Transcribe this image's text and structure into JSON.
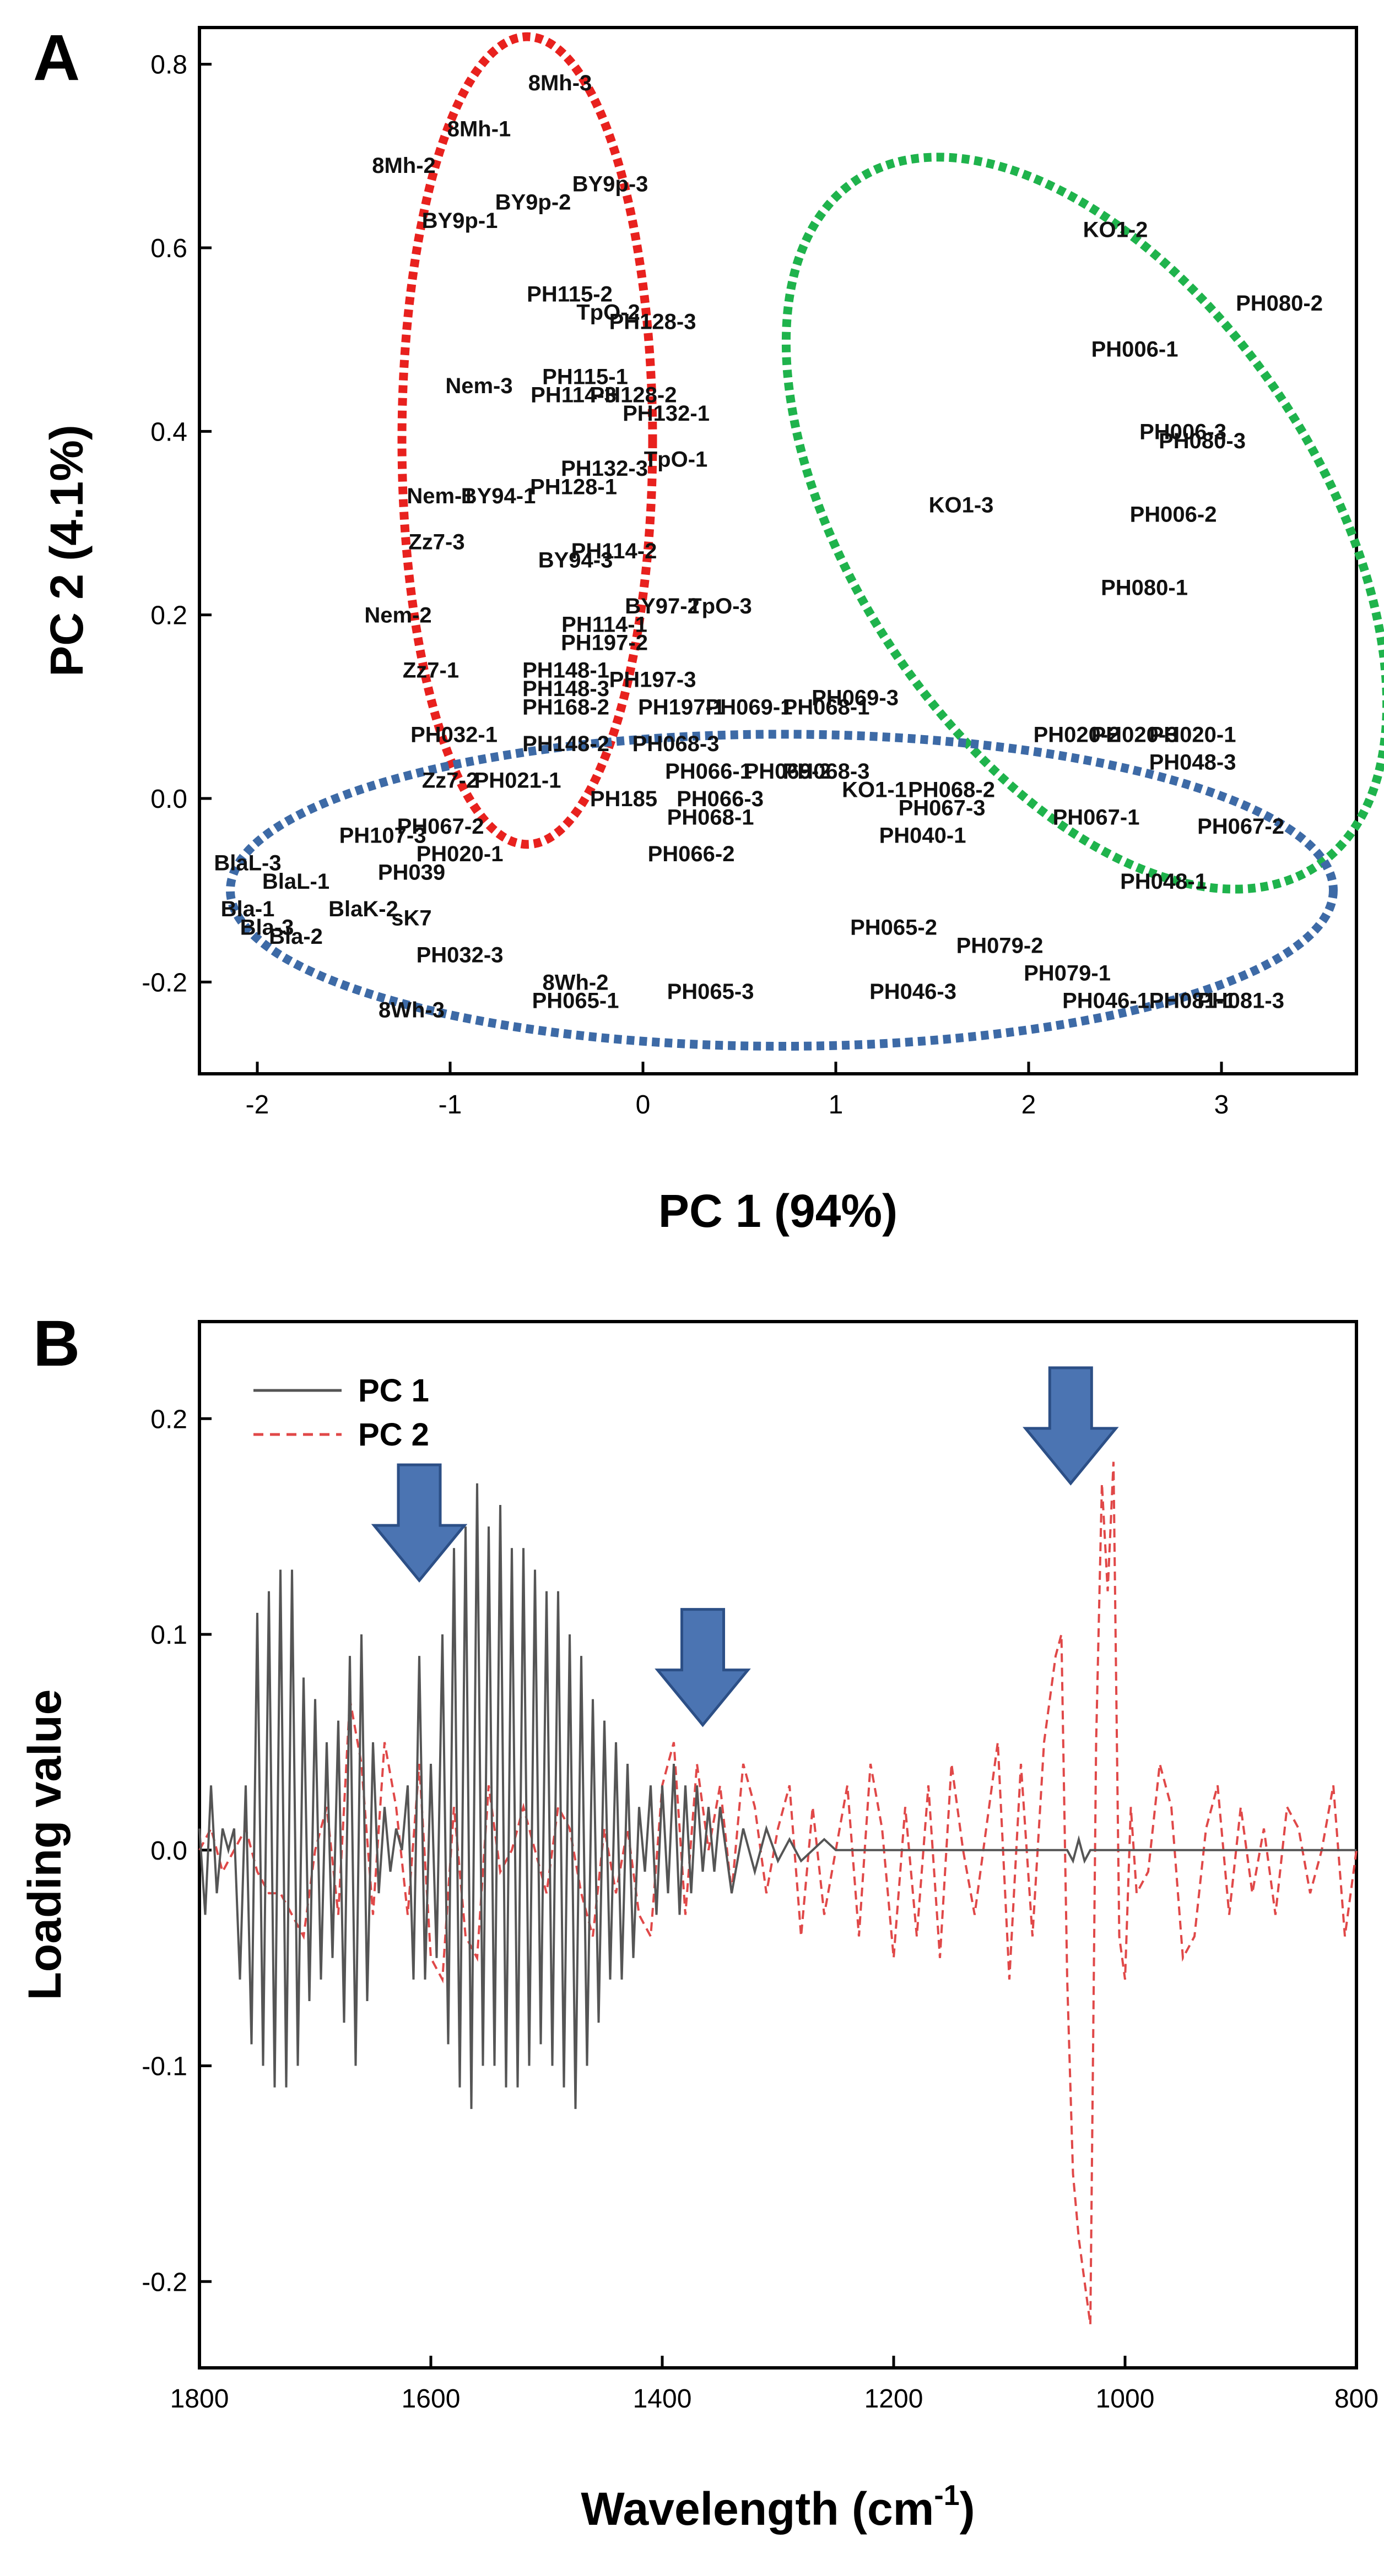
{
  "panels": [
    {
      "letter": "A"
    },
    {
      "letter": "B"
    }
  ],
  "colors": {
    "cluster_red": "#e8211e",
    "cluster_green": "#1fb34c",
    "cluster_blue": "#3d6aa6",
    "pc1_line": "#555555",
    "pc2_line": "#e04848",
    "arrow_fill": "#4b74b2",
    "arrow_stroke": "#2c4f86"
  },
  "chart_data": [
    {
      "type": "scatter",
      "panel": "A",
      "xlabel": "PC 1 (94%)",
      "ylabel": "PC 2 (4.1%)",
      "xlim": [
        -2.3,
        3.7
      ],
      "ylim": [
        -0.3,
        0.84
      ],
      "xticks": [
        -2,
        -1,
        0,
        1,
        2,
        3
      ],
      "yticks": [
        -0.2,
        0.0,
        0.2,
        0.4,
        0.6,
        0.8
      ],
      "xtick_labels": [
        "-2",
        "-1",
        "0",
        "1",
        "2",
        "3"
      ],
      "ytick_labels": [
        "-0.2",
        "0.0",
        "0.2",
        "0.4",
        "0.6",
        "0.8"
      ],
      "clusters": [
        {
          "color": "red",
          "cx": -0.6,
          "cy": 0.39,
          "rx": 0.65,
          "ry": 0.44
        },
        {
          "color": "green",
          "cx": 2.3,
          "cy": 0.3,
          "rx": 1.2,
          "ry": 0.45,
          "rotation": -34
        },
        {
          "color": "blue",
          "cx": 0.72,
          "cy": -0.1,
          "rx": 2.86,
          "ry": 0.17
        }
      ],
      "points": [
        {
          "label": "8Mh-3",
          "x": -0.43,
          "y": 0.78
        },
        {
          "label": "8Mh-1",
          "x": -0.85,
          "y": 0.73
        },
        {
          "label": "8Mh-2",
          "x": -1.24,
          "y": 0.69
        },
        {
          "label": "BY9p-3",
          "x": -0.17,
          "y": 0.67
        },
        {
          "label": "BY9p-2",
          "x": -0.57,
          "y": 0.65
        },
        {
          "label": "BY9p-1",
          "x": -0.95,
          "y": 0.63
        },
        {
          "label": "PH115-2",
          "x": -0.38,
          "y": 0.55
        },
        {
          "label": "TpO-2",
          "x": -0.18,
          "y": 0.53
        },
        {
          "label": "PH128-3",
          "x": 0.05,
          "y": 0.52
        },
        {
          "label": "Nem-3",
          "x": -0.85,
          "y": 0.45
        },
        {
          "label": "PH115-1",
          "x": -0.3,
          "y": 0.46
        },
        {
          "label": "PH114-3",
          "x": -0.36,
          "y": 0.44
        },
        {
          "label": "PH128-2",
          "x": -0.05,
          "y": 0.44
        },
        {
          "label": "PH132-1",
          "x": 0.12,
          "y": 0.42
        },
        {
          "label": "TpO-1",
          "x": 0.17,
          "y": 0.37
        },
        {
          "label": "PH132-3",
          "x": -0.2,
          "y": 0.36
        },
        {
          "label": "PH128-1",
          "x": -0.36,
          "y": 0.34
        },
        {
          "label": "Nem-1",
          "x": -1.05,
          "y": 0.33
        },
        {
          "label": "BY94-1",
          "x": -0.75,
          "y": 0.33
        },
        {
          "label": "Zz7-3",
          "x": -1.07,
          "y": 0.28
        },
        {
          "label": "PH114-2",
          "x": -0.15,
          "y": 0.27
        },
        {
          "label": "BY94-3",
          "x": -0.35,
          "y": 0.26
        },
        {
          "label": "Nem-2",
          "x": -1.27,
          "y": 0.2
        },
        {
          "label": "BY97-2",
          "x": 0.1,
          "y": 0.21
        },
        {
          "label": "TpO-3",
          "x": 0.4,
          "y": 0.21
        },
        {
          "label": "PH114-1",
          "x": -0.2,
          "y": 0.19
        },
        {
          "label": "PH197-2",
          "x": -0.2,
          "y": 0.17
        },
        {
          "label": "Zz7-1",
          "x": -1.1,
          "y": 0.14
        },
        {
          "label": "PH148-1",
          "x": -0.4,
          "y": 0.14
        },
        {
          "label": "PH197-3",
          "x": 0.05,
          "y": 0.13
        },
        {
          "label": "PH148-3",
          "x": -0.4,
          "y": 0.12
        },
        {
          "label": "PH069-3",
          "x": 1.1,
          "y": 0.11
        },
        {
          "label": "PH168-2",
          "x": -0.4,
          "y": 0.1
        },
        {
          "label": "PH197-1",
          "x": 0.2,
          "y": 0.1
        },
        {
          "label": "PH069-1",
          "x": 0.55,
          "y": 0.1
        },
        {
          "label": "PH068-1",
          "x": 0.95,
          "y": 0.1
        },
        {
          "label": "PH032-1",
          "x": -0.98,
          "y": 0.07
        },
        {
          "label": "PH148-2",
          "x": -0.4,
          "y": 0.06
        },
        {
          "label": "PH068-3",
          "x": 0.17,
          "y": 0.06
        },
        {
          "label": "PH020-2",
          "x": 2.25,
          "y": 0.07
        },
        {
          "label": "PH020-3",
          "x": 2.55,
          "y": 0.07
        },
        {
          "label": "PH020-1",
          "x": 2.85,
          "y": 0.07
        },
        {
          "label": "PH048-3",
          "x": 2.85,
          "y": 0.04
        },
        {
          "label": "PH066-1",
          "x": 0.34,
          "y": 0.03
        },
        {
          "label": "PH069-2",
          "x": 0.75,
          "y": 0.03
        },
        {
          "label": "PH068-3",
          "x": 0.95,
          "y": 0.03
        },
        {
          "label": "KO1-1",
          "x": 1.2,
          "y": 0.01
        },
        {
          "label": "PH068-2",
          "x": 1.6,
          "y": 0.01
        },
        {
          "label": "PH067-3",
          "x": 1.55,
          "y": -0.01
        },
        {
          "label": "PH040-1",
          "x": 1.45,
          "y": -0.04
        },
        {
          "label": "PH067-1",
          "x": 2.35,
          "y": -0.02
        },
        {
          "label": "PH067-2",
          "x": 3.1,
          "y": -0.03
        },
        {
          "label": "Zz7-2",
          "x": -1.0,
          "y": 0.02
        },
        {
          "label": "PH021-1",
          "x": -0.65,
          "y": 0.02
        },
        {
          "label": "PH185",
          "x": -0.1,
          "y": 0.0
        },
        {
          "label": "PH066-3",
          "x": 0.4,
          "y": 0.0
        },
        {
          "label": "PH068-1",
          "x": 0.35,
          "y": -0.02
        },
        {
          "label": "PH067-2",
          "x": -1.05,
          "y": -0.03
        },
        {
          "label": "PH107-3",
          "x": -1.35,
          "y": -0.04
        },
        {
          "label": "PH066-2",
          "x": 0.25,
          "y": -0.06
        },
        {
          "label": "PH020-1",
          "x": -0.95,
          "y": -0.06
        },
        {
          "label": "BlaL-3",
          "x": -2.05,
          "y": -0.07
        },
        {
          "label": "BlaL-1",
          "x": -1.8,
          "y": -0.09
        },
        {
          "label": "Bla-1",
          "x": -2.05,
          "y": -0.12
        },
        {
          "label": "BlaK-2",
          "x": -1.45,
          "y": -0.12
        },
        {
          "label": "PH039",
          "x": -1.2,
          "y": -0.08
        },
        {
          "label": "sK7",
          "x": -1.2,
          "y": -0.13
        },
        {
          "label": "Bla-3",
          "x": -1.95,
          "y": -0.14
        },
        {
          "label": "Bla-2",
          "x": -1.8,
          "y": -0.15
        },
        {
          "label": "PH065-2",
          "x": 1.3,
          "y": -0.14
        },
        {
          "label": "PH079-2",
          "x": 1.85,
          "y": -0.16
        },
        {
          "label": "PH079-1",
          "x": 2.2,
          "y": -0.19
        },
        {
          "label": "PH032-3",
          "x": -0.95,
          "y": -0.17
        },
        {
          "label": "8Wh-3",
          "x": -1.2,
          "y": -0.23
        },
        {
          "label": "8Wh-2",
          "x": -0.35,
          "y": -0.2
        },
        {
          "label": "PH065-1",
          "x": -0.35,
          "y": -0.22
        },
        {
          "label": "PH065-3",
          "x": 0.35,
          "y": -0.21
        },
        {
          "label": "PH046-3",
          "x": 1.4,
          "y": -0.21
        },
        {
          "label": "PH048-1",
          "x": 2.7,
          "y": -0.09
        },
        {
          "label": "PH081-3",
          "x": 3.1,
          "y": -0.22
        },
        {
          "label": "PH046-1",
          "x": 2.4,
          "y": -0.22
        },
        {
          "label": "PH081-1",
          "x": 2.85,
          "y": -0.22
        },
        {
          "label": "KO1-2",
          "x": 2.45,
          "y": 0.62
        },
        {
          "label": "PH080-2",
          "x": 3.3,
          "y": 0.54
        },
        {
          "label": "PH006-1",
          "x": 2.55,
          "y": 0.49
        },
        {
          "label": "PH006-3",
          "x": 2.8,
          "y": 0.4
        },
        {
          "label": "PH080-3",
          "x": 2.9,
          "y": 0.39
        },
        {
          "label": "KO1-3",
          "x": 1.65,
          "y": 0.32
        },
        {
          "label": "PH006-2",
          "x": 2.75,
          "y": 0.31
        },
        {
          "label": "PH080-1",
          "x": 2.6,
          "y": 0.23
        }
      ]
    },
    {
      "type": "line",
      "panel": "B",
      "xlabel": "Wavelength (cm",
      "xlabel_sup": "-1",
      "xlabel_end": ")",
      "ylabel": "Loading value",
      "xlim": [
        1800,
        800
      ],
      "ylim": [
        -0.24,
        0.245
      ],
      "xticks": [
        1800,
        1600,
        1400,
        1200,
        1000,
        800
      ],
      "yticks": [
        -0.2,
        -0.1,
        0.0,
        0.1,
        0.2
      ],
      "xtick_labels": [
        "1800",
        "1600",
        "1400",
        "1200",
        "1000",
        "800"
      ],
      "ytick_labels": [
        "-0.2",
        "-0.1",
        "0.0",
        "0.1",
        "0.2"
      ],
      "legend": {
        "placement": "top-left"
      },
      "series": [
        {
          "name": "PC 1",
          "style": "solid",
          "x": [
            1800,
            1795,
            1790,
            1785,
            1780,
            1775,
            1770,
            1765,
            1760,
            1755,
            1750,
            1745,
            1740,
            1735,
            1730,
            1725,
            1720,
            1715,
            1710,
            1705,
            1700,
            1695,
            1690,
            1685,
            1680,
            1675,
            1670,
            1665,
            1660,
            1655,
            1650,
            1645,
            1640,
            1635,
            1630,
            1625,
            1620,
            1615,
            1610,
            1605,
            1600,
            1595,
            1590,
            1585,
            1580,
            1575,
            1570,
            1565,
            1560,
            1555,
            1550,
            1545,
            1540,
            1535,
            1530,
            1525,
            1520,
            1515,
            1510,
            1505,
            1500,
            1495,
            1490,
            1485,
            1480,
            1475,
            1470,
            1465,
            1460,
            1455,
            1450,
            1445,
            1440,
            1435,
            1430,
            1425,
            1420,
            1415,
            1410,
            1405,
            1400,
            1395,
            1390,
            1385,
            1380,
            1375,
            1370,
            1365,
            1360,
            1355,
            1350,
            1340,
            1330,
            1320,
            1310,
            1300,
            1290,
            1280,
            1270,
            1260,
            1250,
            1200,
            1150,
            1100,
            1050,
            1045,
            1040,
            1035,
            1030,
            1000,
            950,
            900,
            850,
            800
          ],
          "y": [
            0.01,
            -0.03,
            0.03,
            -0.02,
            0.01,
            0.0,
            0.01,
            -0.06,
            0.03,
            -0.09,
            0.11,
            -0.1,
            0.12,
            -0.11,
            0.13,
            -0.11,
            0.13,
            -0.1,
            0.08,
            -0.07,
            0.07,
            -0.06,
            0.05,
            -0.05,
            0.06,
            -0.08,
            0.09,
            -0.1,
            0.1,
            -0.07,
            0.05,
            -0.02,
            0.02,
            -0.01,
            0.01,
            0.0,
            0.03,
            -0.06,
            0.09,
            -0.06,
            0.04,
            -0.05,
            0.1,
            -0.09,
            0.14,
            -0.11,
            0.15,
            -0.12,
            0.17,
            -0.1,
            0.15,
            -0.1,
            0.16,
            -0.11,
            0.14,
            -0.11,
            0.14,
            -0.1,
            0.13,
            -0.09,
            0.12,
            -0.1,
            0.12,
            -0.11,
            0.1,
            -0.12,
            0.09,
            -0.1,
            0.07,
            -0.08,
            0.06,
            -0.06,
            0.05,
            -0.06,
            0.04,
            -0.05,
            0.02,
            -0.01,
            0.03,
            -0.03,
            0.03,
            -0.02,
            0.04,
            -0.03,
            0.03,
            -0.02,
            0.03,
            -0.01,
            0.02,
            -0.01,
            0.02,
            -0.02,
            0.01,
            -0.01,
            0.01,
            -0.005,
            0.005,
            -0.005,
            0.0,
            0.005,
            0.0,
            0.0,
            0.0,
            0.0,
            0.0,
            -0.005,
            0.005,
            -0.005,
            0.0,
            0.0,
            0.0,
            0.0,
            0.0,
            0.0
          ]
        },
        {
          "name": "PC 2",
          "style": "dashed",
          "x": [
            1800,
            1790,
            1780,
            1770,
            1760,
            1750,
            1740,
            1730,
            1720,
            1710,
            1700,
            1690,
            1680,
            1670,
            1660,
            1650,
            1640,
            1630,
            1620,
            1610,
            1600,
            1590,
            1580,
            1570,
            1560,
            1550,
            1540,
            1530,
            1520,
            1510,
            1500,
            1490,
            1480,
            1470,
            1460,
            1450,
            1440,
            1430,
            1420,
            1410,
            1400,
            1390,
            1380,
            1370,
            1360,
            1350,
            1340,
            1330,
            1320,
            1310,
            1300,
            1290,
            1280,
            1270,
            1260,
            1250,
            1240,
            1230,
            1220,
            1210,
            1200,
            1190,
            1180,
            1170,
            1160,
            1150,
            1140,
            1130,
            1120,
            1110,
            1100,
            1090,
            1080,
            1070,
            1060,
            1055,
            1050,
            1045,
            1040,
            1035,
            1030,
            1025,
            1020,
            1015,
            1010,
            1005,
            1000,
            995,
            990,
            980,
            970,
            960,
            950,
            940,
            930,
            920,
            910,
            900,
            890,
            880,
            870,
            860,
            850,
            840,
            830,
            820,
            810,
            800
          ],
          "y": [
            0.0,
            0.01,
            -0.01,
            0.0,
            0.01,
            -0.01,
            -0.02,
            -0.02,
            -0.03,
            -0.04,
            0.0,
            0.02,
            -0.03,
            0.07,
            0.04,
            -0.03,
            0.05,
            0.02,
            -0.03,
            0.04,
            -0.05,
            -0.06,
            0.02,
            -0.04,
            -0.05,
            0.03,
            -0.01,
            0.0,
            0.02,
            0.0,
            -0.02,
            0.02,
            0.01,
            -0.02,
            -0.04,
            0.01,
            -0.02,
            0.01,
            -0.03,
            -0.04,
            0.03,
            0.05,
            -0.03,
            0.04,
            0.0,
            0.03,
            -0.02,
            0.04,
            0.02,
            -0.02,
            0.01,
            0.03,
            -0.04,
            0.02,
            -0.03,
            0.0,
            0.03,
            -0.04,
            0.04,
            0.01,
            -0.05,
            0.02,
            -0.04,
            0.03,
            -0.05,
            0.04,
            0.0,
            -0.03,
            0.01,
            0.05,
            -0.06,
            0.04,
            -0.04,
            0.05,
            0.09,
            0.1,
            -0.06,
            -0.15,
            -0.18,
            -0.2,
            -0.22,
            0.05,
            0.17,
            0.12,
            0.18,
            -0.04,
            -0.06,
            0.02,
            -0.02,
            -0.01,
            0.04,
            0.02,
            -0.05,
            -0.04,
            0.01,
            0.03,
            -0.03,
            0.02,
            -0.02,
            0.01,
            -0.03,
            0.02,
            0.01,
            -0.02,
            0.0,
            0.03,
            -0.04,
            0.0
          ]
        }
      ],
      "arrows": [
        {
          "x": 1610,
          "y": 0.125
        },
        {
          "x": 1365,
          "y": 0.058
        },
        {
          "x": 1047,
          "y": 0.17
        }
      ]
    }
  ]
}
